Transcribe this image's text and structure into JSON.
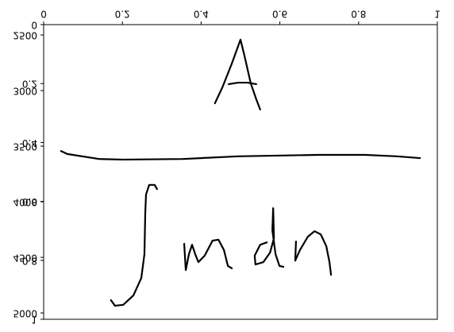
{
  "chart_data": {
    "type": "line",
    "inverted_y": true,
    "color": "#000000",
    "xlim": [
      0,
      1
    ],
    "xticks": [
      0.0,
      0.2,
      0.4,
      0.6,
      0.8,
      1.0
    ],
    "ylim": [
      0,
      1
    ],
    "yticks": [
      0.0,
      0.2,
      0.4,
      0.6,
      0.8,
      1.0
    ],
    "y2lim": [
      2407,
      5057
    ],
    "y2ticks": [
      2500,
      3000,
      3500,
      4000,
      4500,
      5000
    ],
    "series": [
      {
        "color": "#000000",
        "x": [
          0.435,
          0.454,
          0.478,
          0.5,
          0.51,
          0.526,
          0.54,
          0.55
        ],
        "values": [
          0.267,
          0.213,
          0.132,
          0.051,
          0.105,
          0.199,
          0.253,
          0.288
        ]
      },
      {
        "color": "#000000",
        "x": [
          0.47,
          0.494,
          0.518,
          0.54
        ],
        "values": [
          0.202,
          0.197,
          0.197,
          0.202
        ]
      },
      {
        "color": "#000000",
        "x": [
          0.044,
          0.06,
          0.141,
          0.202,
          0.353,
          0.494,
          0.696,
          0.817,
          0.897,
          0.956
        ],
        "values": [
          0.429,
          0.439,
          0.456,
          0.458,
          0.456,
          0.447,
          0.442,
          0.442,
          0.447,
          0.453
        ]
      },
      {
        "color": "#000000",
        "x": [
          0.288,
          0.282,
          0.268,
          0.26,
          0.258,
          0.256,
          0.248,
          0.228,
          0.202,
          0.181,
          0.171
        ],
        "values": [
          0.558,
          0.544,
          0.544,
          0.577,
          0.644,
          0.779,
          0.86,
          0.919,
          0.951,
          0.954,
          0.935
        ]
      },
      {
        "color": "#000000",
        "x": [
          0.357,
          0.361,
          0.369,
          0.377,
          0.385,
          0.393,
          0.409,
          0.429,
          0.444,
          0.458,
          0.468,
          0.478
        ],
        "values": [
          0.744,
          0.833,
          0.779,
          0.747,
          0.779,
          0.806,
          0.784,
          0.733,
          0.73,
          0.765,
          0.819,
          0.827
        ]
      },
      {
        "color": "#000000",
        "x": [
          0.567,
          0.55,
          0.536,
          0.538,
          0.558,
          0.575,
          0.585,
          0.583,
          0.581,
          0.589,
          0.599,
          0.609
        ],
        "values": [
          0.739,
          0.747,
          0.784,
          0.814,
          0.806,
          0.774,
          0.725,
          0.623,
          0.698,
          0.779,
          0.819,
          0.822
        ]
      },
      {
        "color": "#000000",
        "x": [
          0.641,
          0.639,
          0.651,
          0.671,
          0.688,
          0.704,
          0.718,
          0.726,
          0.73
        ],
        "values": [
          0.736,
          0.801,
          0.765,
          0.72,
          0.701,
          0.712,
          0.752,
          0.806,
          0.849
        ]
      }
    ]
  }
}
